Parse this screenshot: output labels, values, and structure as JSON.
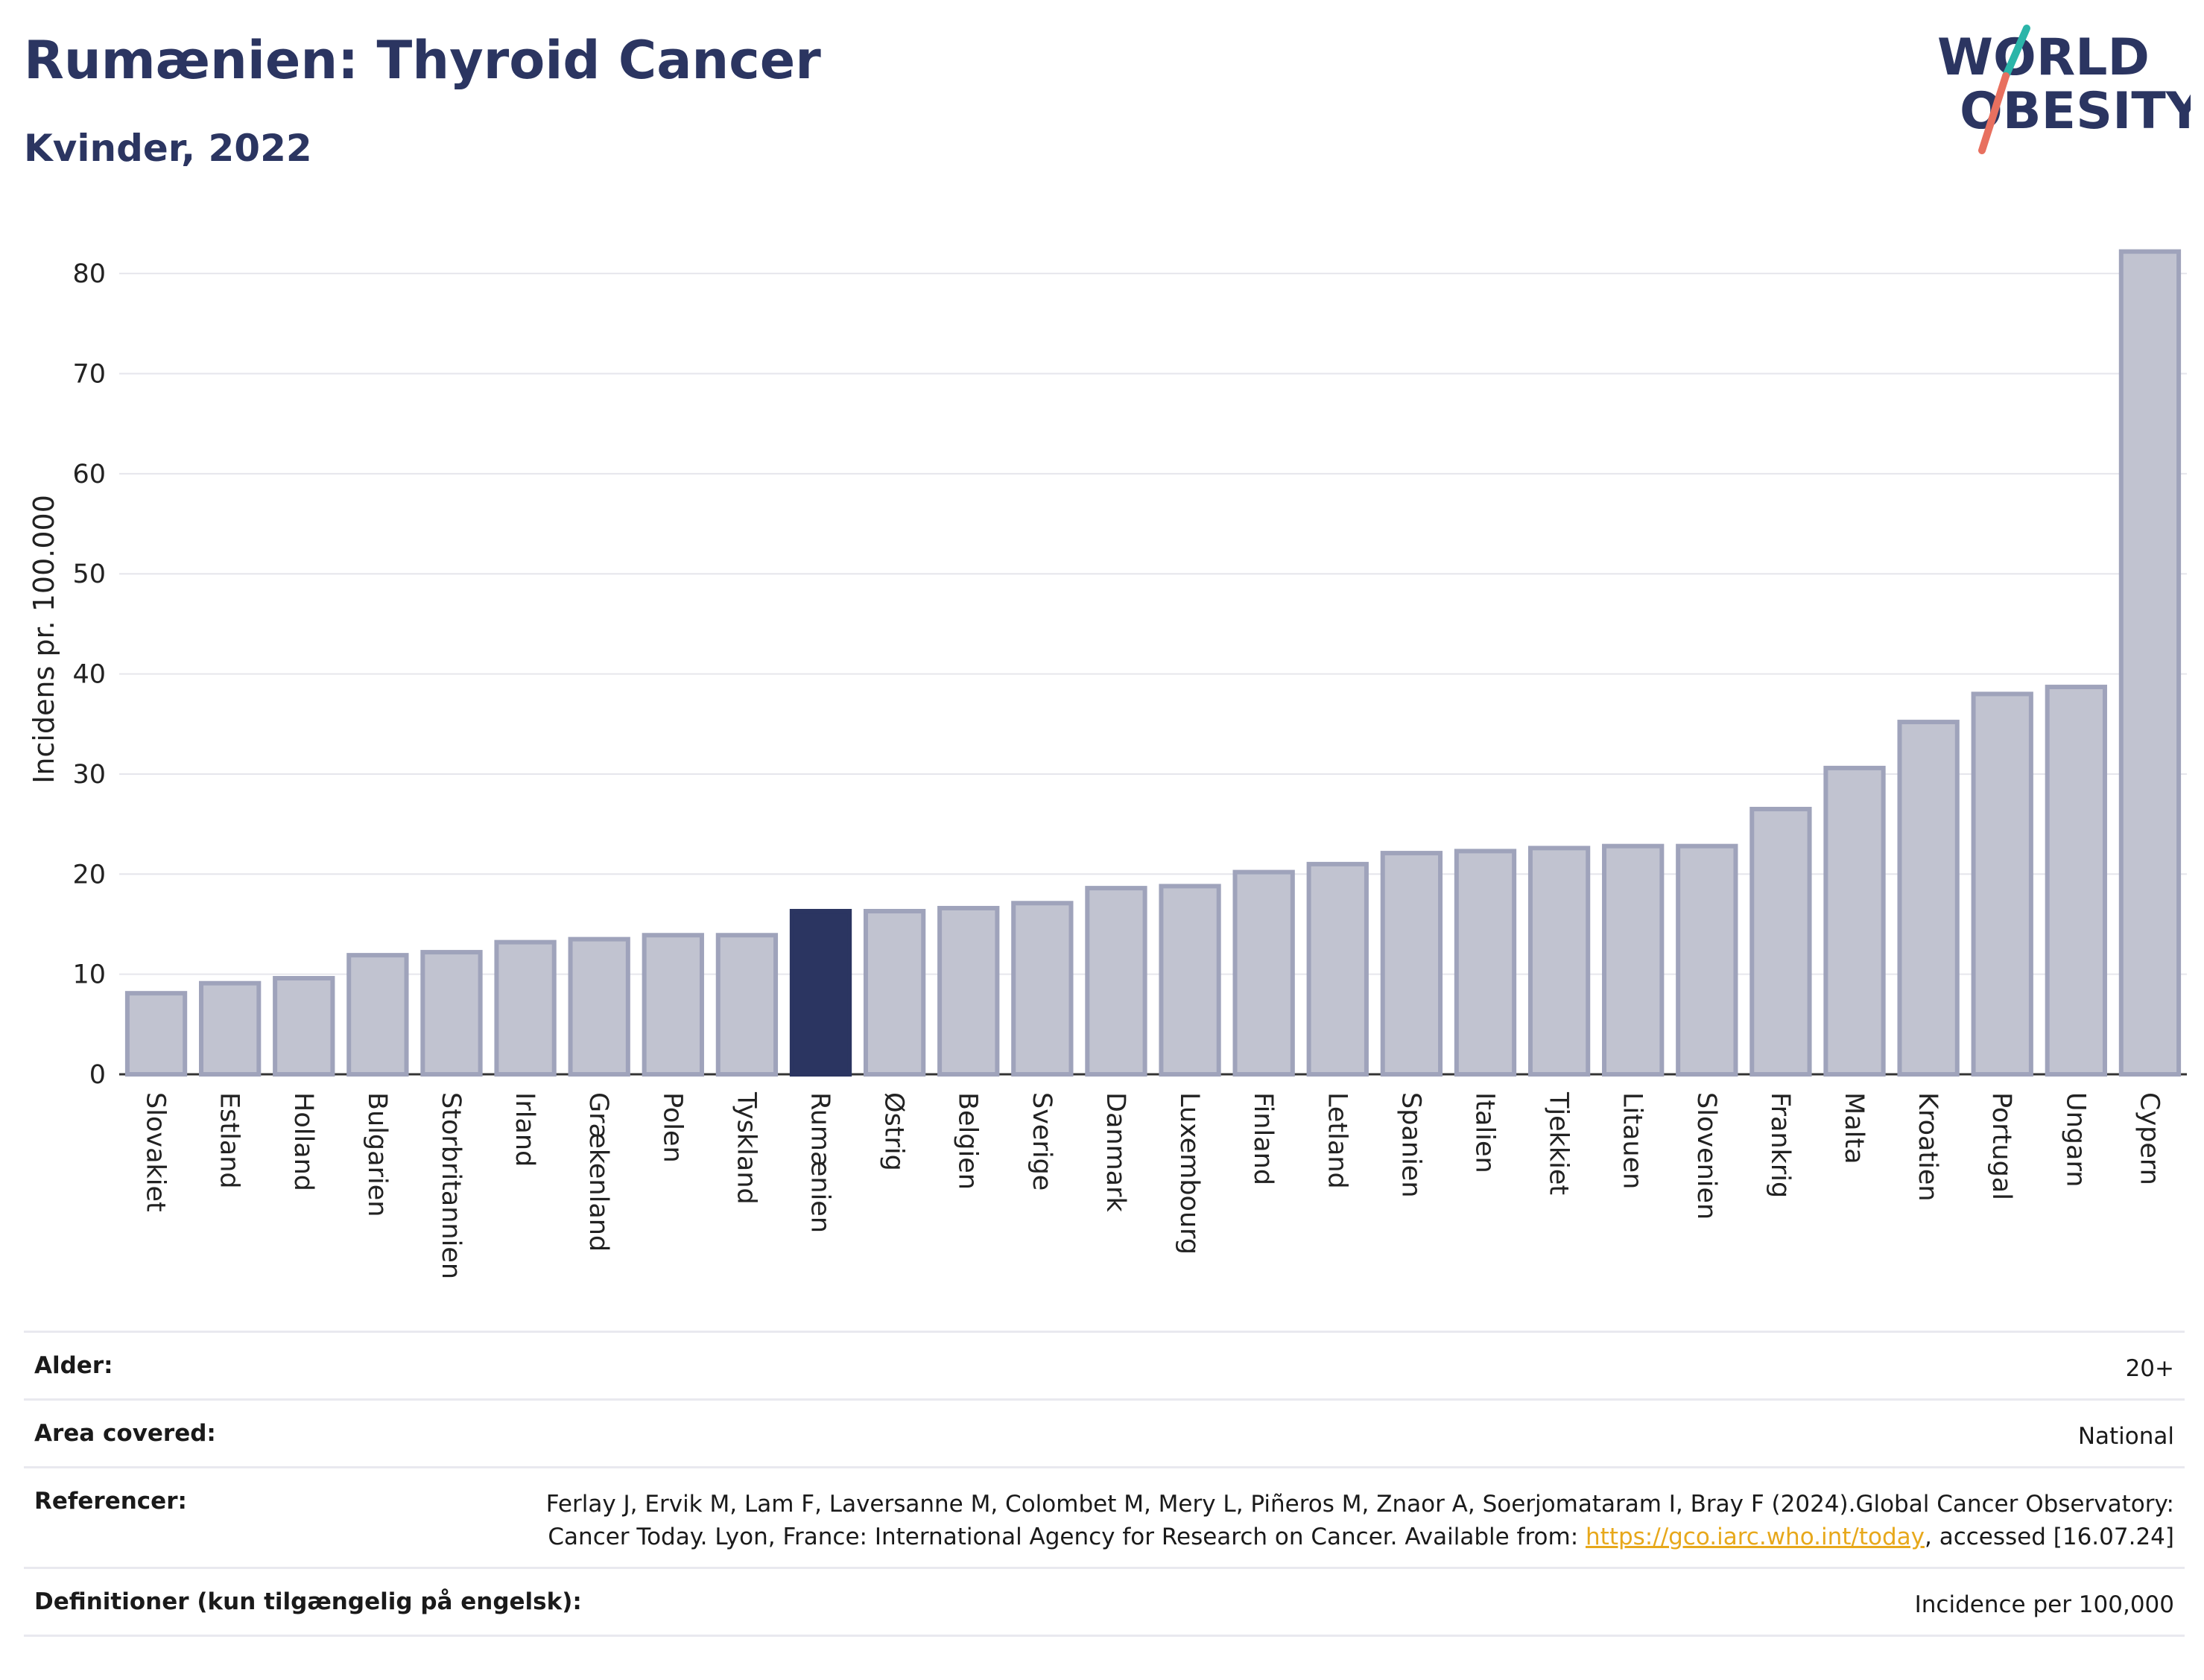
{
  "header": {
    "title": "Rumænien: Thyroid Cancer",
    "subtitle": "Kvinder, 2022"
  },
  "logo": {
    "line1": "WORLD",
    "line2": "OBESITY",
    "colors": {
      "text": "#2b3561",
      "teal": "#2bb5a9",
      "coral": "#e8705f"
    }
  },
  "chart_data": {
    "type": "bar",
    "ylabel": "Incidens pr. 100.000",
    "ylim": [
      0,
      85
    ],
    "yticks": [
      0,
      10,
      20,
      30,
      40,
      50,
      60,
      70,
      80
    ],
    "grid": true,
    "highlight": "Rumænien",
    "colors": {
      "bar": "#c1c3d0",
      "bar_edge": "#9fa3bb",
      "highlight": "#2b3561",
      "grid": "#e6e6ec"
    },
    "categories": [
      "Slovakiet",
      "Estland",
      "Holland",
      "Bulgarien",
      "Storbritannien",
      "Irland",
      "Grækenland",
      "Polen",
      "Tyskland",
      "Rumænien",
      "Østrig",
      "Belgien",
      "Sverige",
      "Danmark",
      "Luxembourg",
      "Finland",
      "Letland",
      "Spanien",
      "Italien",
      "Tjekkiet",
      "Litauen",
      "Slovenien",
      "Frankrig",
      "Malta",
      "Kroatien",
      "Portugal",
      "Ungarn",
      "Cypern"
    ],
    "values": [
      8.1,
      9.1,
      9.6,
      11.9,
      12.2,
      13.2,
      13.5,
      13.9,
      13.9,
      16.3,
      16.3,
      16.6,
      17.1,
      18.6,
      18.8,
      20.2,
      21.0,
      22.1,
      22.3,
      22.6,
      22.8,
      22.8,
      26.5,
      30.6,
      35.2,
      38.0,
      38.7,
      82.2
    ]
  },
  "meta": {
    "rows": [
      {
        "label": "Alder:",
        "value": "20+"
      },
      {
        "label": "Area covered:",
        "value": "National"
      },
      {
        "label": "Referencer:",
        "value": "Ferlay J, Ervik M, Lam F, Laversanne M, Colombet M, Mery L, Piñeros M, Znaor A, Soerjomataram I, Bray F (2024).Global Cancer Observatory: Cancer Today. Lyon, France: International Agency for Research on Cancer. Available from:",
        "link": "https://gco.iarc.who.int/today",
        "value_after": ", accessed [16.07.24]"
      },
      {
        "label": "Definitioner (kun tilgængelig på engelsk):",
        "value": "Incidence per 100,000"
      }
    ]
  }
}
